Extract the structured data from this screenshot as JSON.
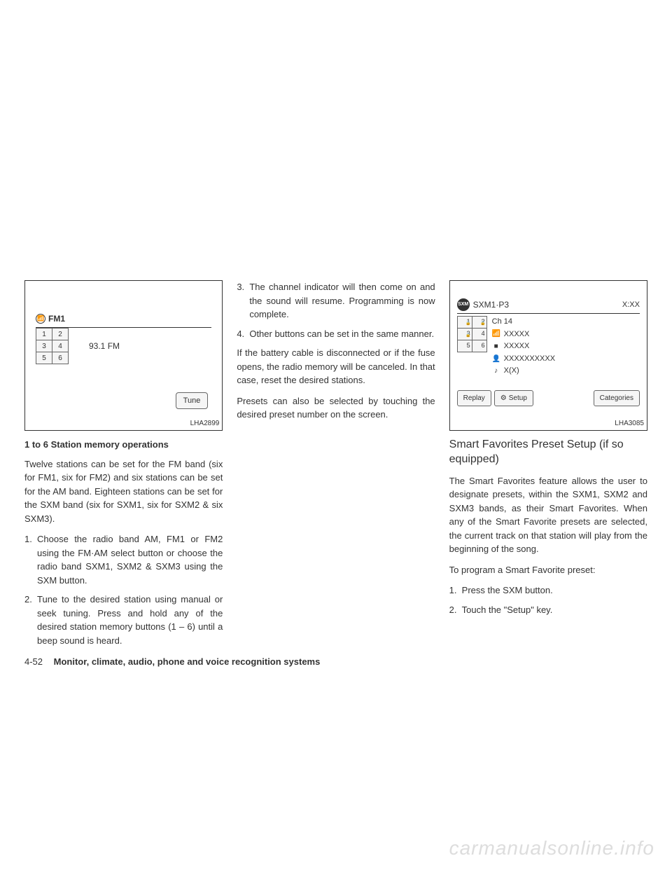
{
  "col1": {
    "figure": {
      "label": "LHA2899",
      "band": "FM1",
      "presets": [
        "1",
        "2",
        "3",
        "4",
        "5",
        "6"
      ],
      "frequency": "93.1 FM",
      "tune": "Tune"
    },
    "heading": "1 to 6 Station memory operations",
    "para1": "Twelve stations can be set for the FM band (six for FM1, six for FM2) and six stations can be set for the AM band. Eighteen stations can be set for the SXM band (six for SXM1, six for SXM2 & six SXM3).",
    "item1": "Choose the radio band AM, FM1 or FM2 using the FM·AM select button or choose the radio band SXM1, SXM2 & SXM3 using the SXM button.",
    "item2": "Tune to the desired station using manual or seek tuning. Press and hold any of the desired station memory buttons (1 – 6) until a beep sound is heard."
  },
  "col2": {
    "item3": "The channel indicator will then come on and the sound will resume. Programming is now complete.",
    "item4": "Other buttons can be set in the same manner.",
    "para1": "If the battery cable is disconnected or if the fuse opens, the radio memory will be canceled. In that case, reset the desired stations.",
    "para2": "Presets can also be selected by touching the desired preset number on the screen."
  },
  "col3": {
    "figure": {
      "label": "LHA3085",
      "badge": "SXM",
      "title": "SXM1·P3",
      "time": "X:XX",
      "presets": [
        "1",
        "2",
        "3",
        "4",
        "5",
        "6"
      ],
      "channel": "Ch 14",
      "line1": "XXXXX",
      "line2": "XXXXX",
      "line3": "XXXXXXXXXX",
      "line4": "X(X)",
      "replay": "Replay",
      "setup": "Setup",
      "categories": "Categories"
    },
    "heading": "Smart Favorites Preset Setup (if so equipped)",
    "para1": "The Smart Favorites feature allows the user to designate presets, within the SXM1, SXM2 and SXM3 bands, as their Smart Favorites. When any of the Smart Favorite presets are selected, the current track on that station will play from the beginning of the song.",
    "para2": "To program a Smart Favorite preset:",
    "item1": "Press the SXM button.",
    "item2": "Touch the \"Setup\" key."
  },
  "footer": {
    "pagenum": "4-52",
    "section": "Monitor, climate, audio, phone and voice recognition systems"
  },
  "watermark": "carmanualsonline.info"
}
